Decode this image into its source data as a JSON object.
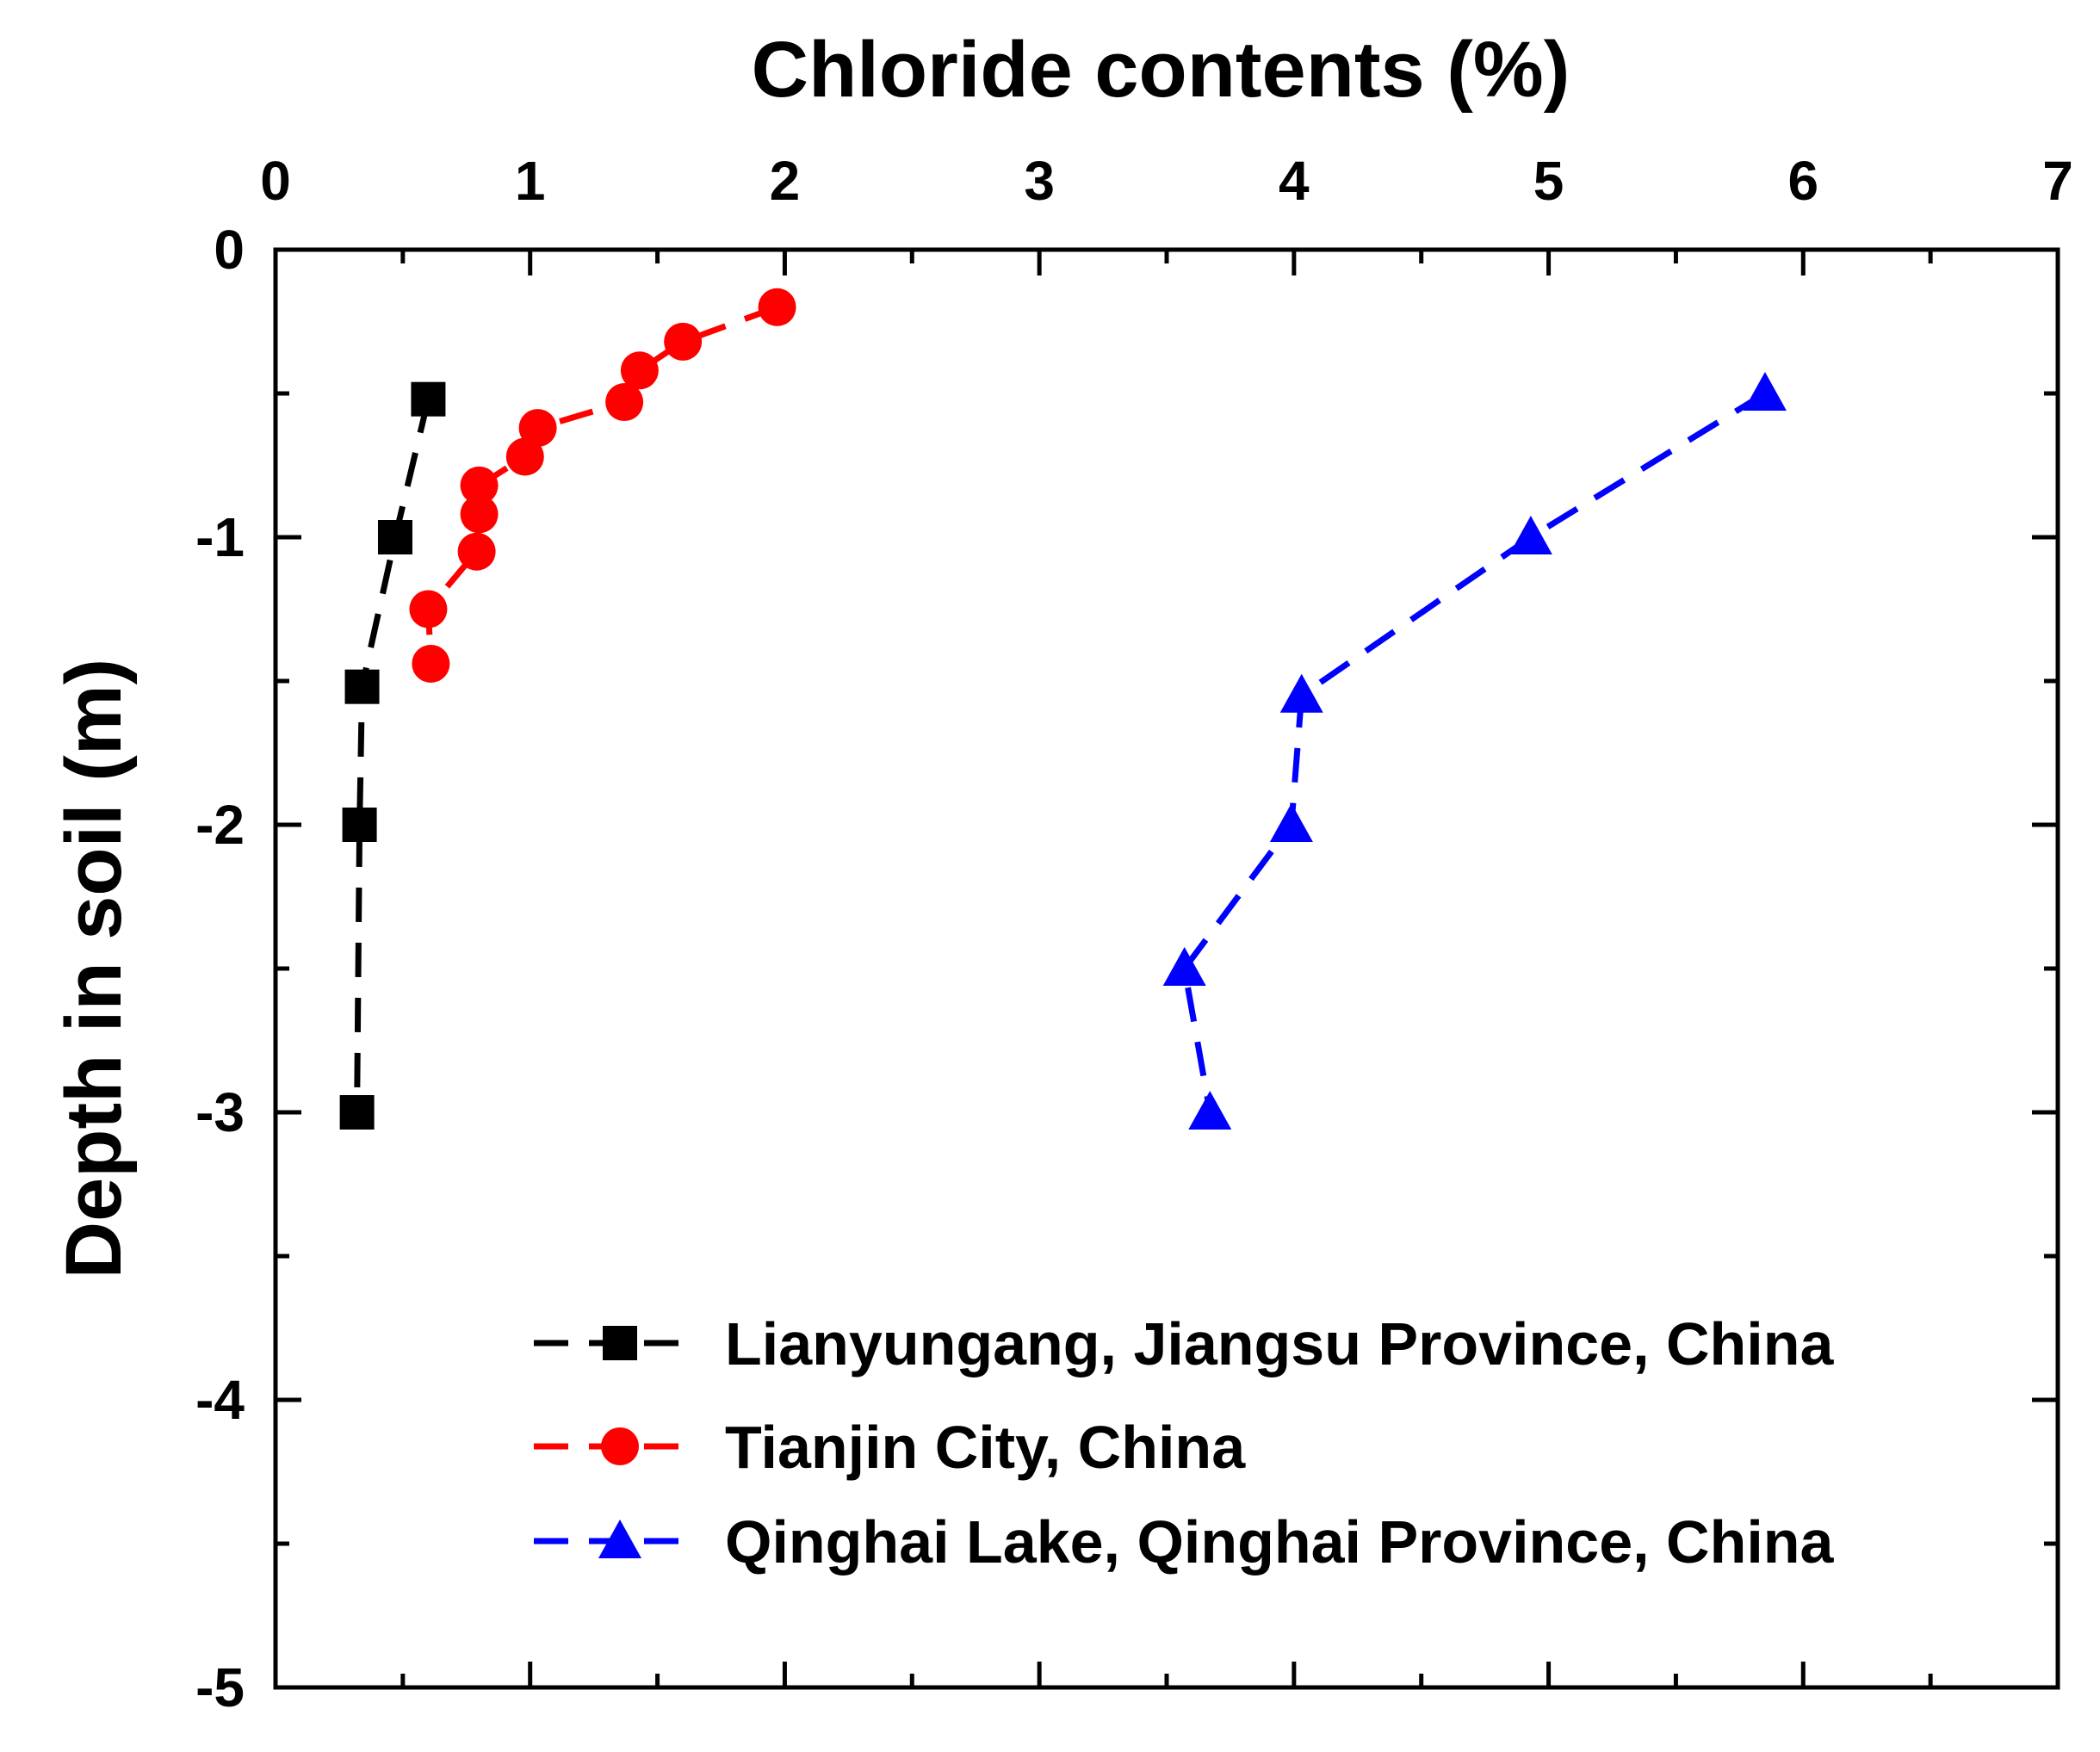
{
  "chart_data": {
    "type": "line",
    "title": "",
    "xlabel": "Chloride contents (%)",
    "ylabel": "Depth in soil (m)",
    "xlim": [
      0,
      7
    ],
    "ylim": [
      -5,
      0
    ],
    "x_ticks": [
      "0",
      "1",
      "2",
      "3",
      "4",
      "5",
      "6",
      "7"
    ],
    "y_ticks": [
      "0",
      "-1",
      "-2",
      "-3",
      "-4",
      "-5"
    ],
    "x_axis_position": "top",
    "grid": false,
    "legend_position": "bottom-right",
    "series": [
      {
        "name": "Lianyungang, Jiangsu Province, China",
        "color": "#000000",
        "marker": "square",
        "line_style": "dashed",
        "x": [
          0.6,
          0.47,
          0.34,
          0.33,
          0.32
        ],
        "y": [
          -0.52,
          -1.0,
          -1.52,
          -2.0,
          -3.0
        ]
      },
      {
        "name": "Tianjin City, China",
        "color": "#ff0000",
        "marker": "circle",
        "line_style": "dashed",
        "x": [
          1.97,
          1.6,
          1.43,
          1.37,
          1.03,
          0.98,
          0.8,
          0.8,
          0.79,
          0.6,
          0.61
        ],
        "y": [
          -0.2,
          -0.32,
          -0.42,
          -0.53,
          -0.62,
          -0.72,
          -0.82,
          -0.92,
          -1.05,
          -1.25,
          -1.44
        ]
      },
      {
        "name": "Qinghai Lake, Qinghai Province, China",
        "color": "#0000ff",
        "marker": "triangle",
        "line_style": "dashed",
        "x": [
          5.85,
          4.93,
          4.03,
          3.99,
          3.57,
          3.67
        ],
        "y": [
          -0.5,
          -1.0,
          -1.55,
          -2.0,
          -2.5,
          -3.0
        ]
      }
    ]
  }
}
